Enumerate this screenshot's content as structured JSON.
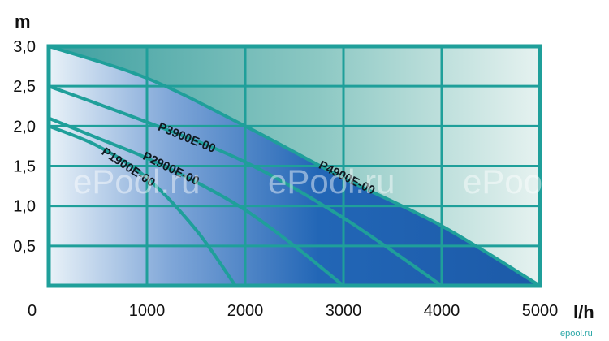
{
  "watermarks": {
    "left": "ePool.ru",
    "center": "ePool.ru",
    "right": "ePool.ru",
    "partial": "u",
    "corner": "epool.ru"
  },
  "colors": {
    "frame": "#1f9f9a",
    "grid": "#1f9f9a",
    "fill_light": "#cfe6f2",
    "fill_dark": "#1e5fae",
    "bg_light": "#e8f3f1",
    "bg_dark": "#47a7a0"
  },
  "chart_data": {
    "type": "line",
    "xlabel": "l/h",
    "ylabel": "m",
    "xlim": [
      0,
      5000
    ],
    "ylim": [
      0,
      3.0
    ],
    "x_ticks": [
      "0",
      "1000",
      "2000",
      "3000",
      "4000",
      "5000"
    ],
    "y_ticks": [
      "0,5",
      "1,0",
      "1,5",
      "2,0",
      "2,5",
      "3,0"
    ],
    "grid": true,
    "series": [
      {
        "name": "P1900E-00",
        "x": [
          0,
          500,
          1000,
          1500,
          1900
        ],
        "y": [
          2.0,
          1.75,
          1.35,
          0.7,
          0
        ]
      },
      {
        "name": "P2900E-00",
        "x": [
          0,
          500,
          1000,
          1500,
          2000,
          2500,
          3000
        ],
        "y": [
          2.1,
          1.85,
          1.6,
          1.3,
          0.95,
          0.5,
          0
        ]
      },
      {
        "name": "P3900E-00",
        "x": [
          0,
          1000,
          2000,
          3000,
          4000
        ],
        "y": [
          2.5,
          2.05,
          1.55,
          0.85,
          0
        ]
      },
      {
        "name": "P4900E-00",
        "x": [
          0,
          1000,
          2000,
          3000,
          4000,
          5000
        ],
        "y": [
          3.0,
          2.6,
          2.0,
          1.35,
          0.75,
          0
        ]
      }
    ]
  }
}
